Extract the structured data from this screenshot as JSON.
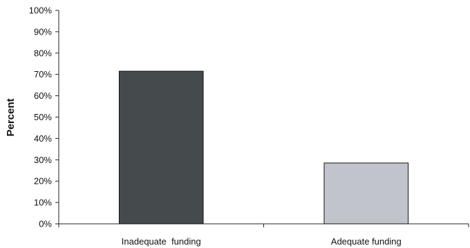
{
  "chart_data": {
    "type": "bar",
    "title": "",
    "xlabel": "",
    "ylabel": "Percent",
    "ylim": [
      0,
      100
    ],
    "yticks": [
      0,
      10,
      20,
      30,
      40,
      50,
      60,
      70,
      80,
      90,
      100
    ],
    "ytick_labels": [
      "0%",
      "10%",
      "20%",
      "30%",
      "40%",
      "50%",
      "60%",
      "70%",
      "80%",
      "90%",
      "100%"
    ],
    "categories": [
      "Inadequate  funding",
      "Adequate funding"
    ],
    "values": [
      71.5,
      28.5
    ],
    "colors": [
      "#454b4d",
      "#c2c4cb"
    ],
    "grid": false,
    "legend": "none"
  }
}
